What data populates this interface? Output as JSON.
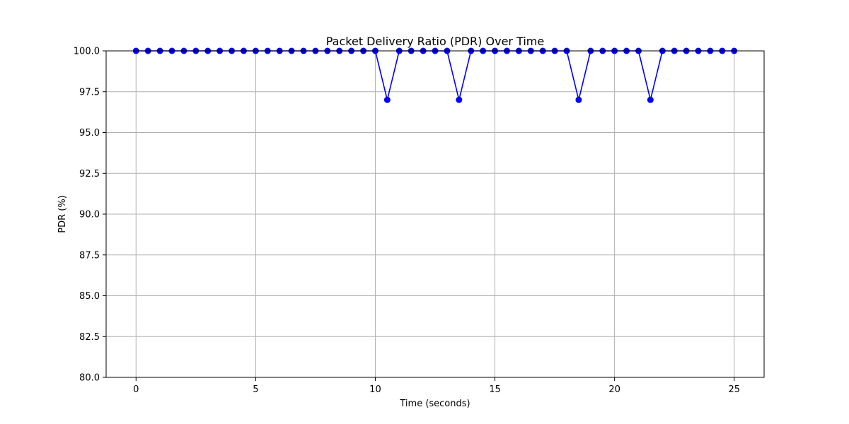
{
  "chart_data": {
    "type": "line",
    "title": "Packet Delivery Ratio (PDR) Over Time",
    "xlabel": "Time (seconds)",
    "ylabel": "PDR (%)",
    "xlim": [
      -1.25,
      26.25
    ],
    "ylim": [
      80,
      100
    ],
    "xticks": [
      0,
      5,
      10,
      15,
      20,
      25
    ],
    "yticks": [
      80,
      82.5,
      85,
      87.5,
      90,
      92.5,
      95,
      97.5,
      100
    ],
    "xtick_labels": [
      "0",
      "5",
      "10",
      "15",
      "20",
      "25"
    ],
    "ytick_labels": [
      "80.0",
      "82.5",
      "85.0",
      "87.5",
      "90.0",
      "92.5",
      "95.0",
      "97.5",
      "100.0"
    ],
    "grid": true,
    "series": [
      {
        "color": "#0000ff",
        "marker": "circle",
        "x": [
          0,
          0.5,
          1,
          1.5,
          2,
          2.5,
          3,
          3.5,
          4,
          4.5,
          5,
          5.5,
          6,
          6.5,
          7,
          7.5,
          8,
          8.5,
          9,
          9.5,
          10,
          10.5,
          11,
          11.5,
          12,
          12.5,
          13,
          13.5,
          14,
          14.5,
          15,
          15.5,
          16,
          16.5,
          17,
          17.5,
          18,
          18.5,
          19,
          19.5,
          20,
          20.5,
          21,
          21.5,
          22,
          22.5,
          23,
          23.5,
          24,
          24.5,
          25
        ],
        "y": [
          100,
          100,
          100,
          100,
          100,
          100,
          100,
          100,
          100,
          100,
          100,
          100,
          100,
          100,
          100,
          100,
          100,
          100,
          100,
          100,
          100,
          97,
          100,
          100,
          100,
          100,
          100,
          97,
          100,
          100,
          100,
          100,
          100,
          100,
          100,
          100,
          100,
          97,
          100,
          100,
          100,
          100,
          100,
          97,
          100,
          100,
          100,
          100,
          100,
          100,
          100
        ]
      }
    ]
  }
}
